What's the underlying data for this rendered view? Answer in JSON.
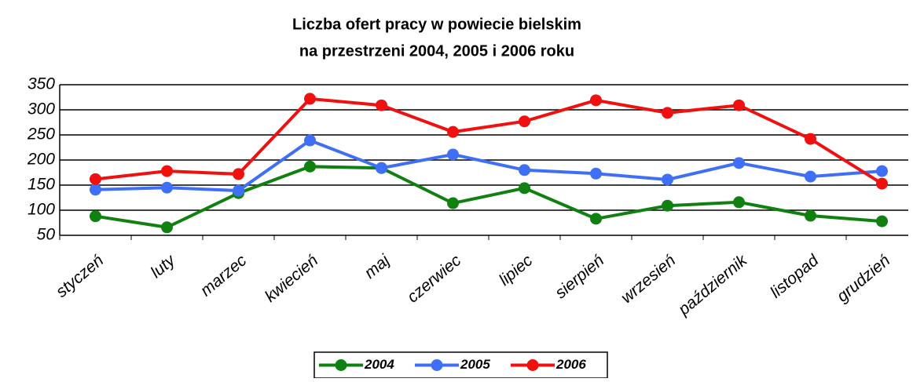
{
  "chart_data": {
    "type": "line",
    "title": [
      "Liczba ofert pracy  w powiecie bielskim",
      "na przestrzeni 2004, 2005 i 2006 roku"
    ],
    "categories": [
      "styczeń",
      "luty",
      "marzec",
      "kwiecień",
      "maj",
      "czerwiec",
      "lipiec",
      "sierpień",
      "wrzesień",
      "październik",
      "listopad",
      "grudzień"
    ],
    "series": [
      {
        "name": "2004",
        "color": "#108010",
        "values": [
          88,
          66,
          134,
          187,
          184,
          114,
          144,
          83,
          109,
          116,
          89,
          78
        ]
      },
      {
        "name": "2005",
        "color": "#3f6ff6",
        "values": [
          141,
          145,
          139,
          239,
          184,
          211,
          180,
          173,
          161,
          194,
          167,
          178
        ]
      },
      {
        "name": "2006",
        "color": "#f01010",
        "values": [
          162,
          178,
          172,
          322,
          309,
          256,
          277,
          319,
          294,
          309,
          242,
          153
        ]
      }
    ],
    "ylim": [
      50,
      350
    ],
    "yticks": [
      50,
      100,
      150,
      200,
      250,
      300,
      350
    ],
    "grid": true,
    "legend": "bottom"
  }
}
